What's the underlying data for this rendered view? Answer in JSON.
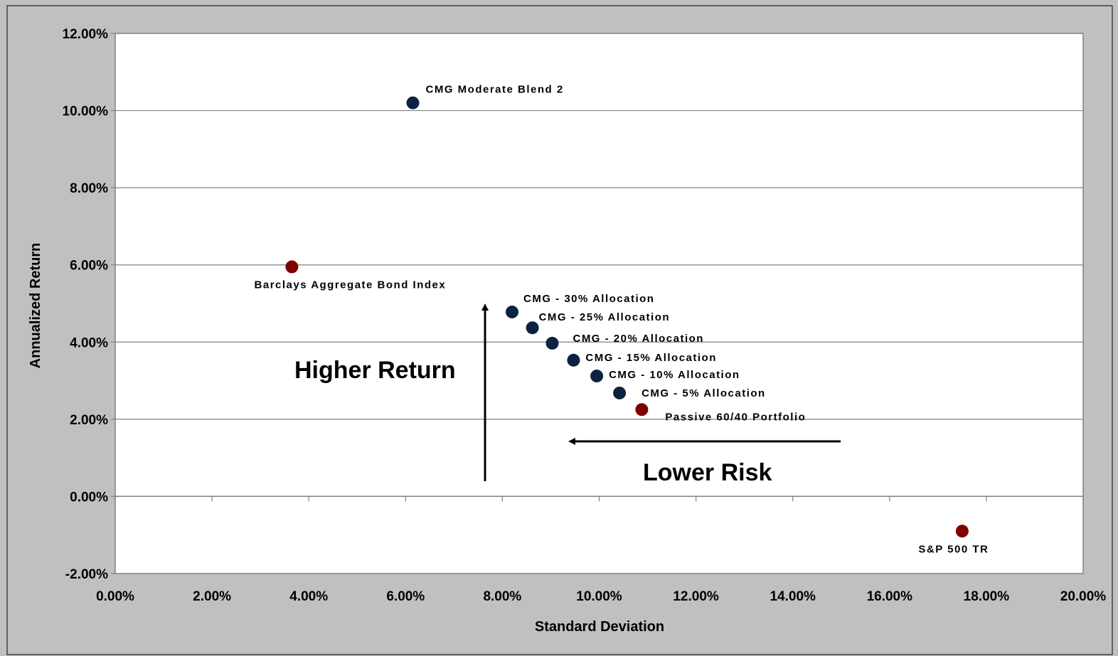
{
  "chart_data": {
    "type": "scatter",
    "xlabel": "Standard Deviation",
    "ylabel": "Annualized Return",
    "xlim": [
      0,
      20
    ],
    "ylim": [
      -2,
      12
    ],
    "x_ticks": [
      "0.00%",
      "2.00%",
      "4.00%",
      "6.00%",
      "8.00%",
      "10.00%",
      "12.00%",
      "14.00%",
      "16.00%",
      "18.00%",
      "20.00%"
    ],
    "y_ticks": [
      "-2.00%",
      "0.00%",
      "2.00%",
      "4.00%",
      "6.00%",
      "8.00%",
      "10.00%",
      "12.00%"
    ],
    "grid": "horizontal",
    "colors": {
      "cmg": "#0d2240",
      "benchmark": "#7f0000",
      "plot_bg": "#ffffff",
      "outer_bg": "#c0c0c0",
      "grid": "#808080"
    },
    "points": [
      {
        "label": "CMG Moderate Blend 2",
        "x": 6.15,
        "y": 10.2,
        "group": "cmg"
      },
      {
        "label": "Barclays Aggregate Bond Index",
        "x": 3.65,
        "y": 5.95,
        "group": "benchmark"
      },
      {
        "label": "CMG - 30% Allocation",
        "x": 8.2,
        "y": 4.78,
        "group": "cmg"
      },
      {
        "label": "CMG - 25% Allocation",
        "x": 8.62,
        "y": 4.37,
        "group": "cmg"
      },
      {
        "label": "CMG - 20% Allocation",
        "x": 9.03,
        "y": 3.97,
        "group": "cmg"
      },
      {
        "label": "CMG - 15% Allocation",
        "x": 9.47,
        "y": 3.53,
        "group": "cmg"
      },
      {
        "label": "CMG - 10% Allocation",
        "x": 9.95,
        "y": 3.12,
        "group": "cmg"
      },
      {
        "label": "CMG - 5% Allocation",
        "x": 10.42,
        "y": 2.68,
        "group": "cmg"
      },
      {
        "label": "Passive 60/40 Portfolio",
        "x": 10.88,
        "y": 2.25,
        "group": "benchmark"
      },
      {
        "label": "S&P 500 TR",
        "x": 17.5,
        "y": -0.9,
        "group": "benchmark"
      }
    ],
    "annotations": {
      "higher_return": "Higher Return",
      "lower_risk": "Lower Risk"
    }
  }
}
